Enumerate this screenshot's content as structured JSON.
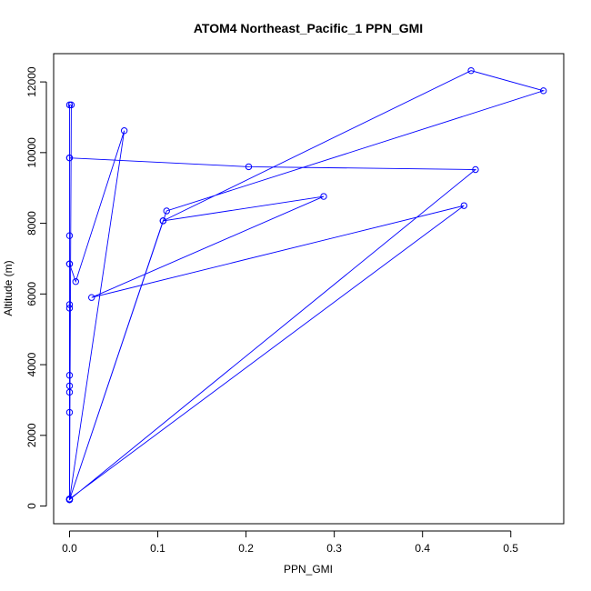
{
  "chart_data": {
    "type": "line",
    "title": "ATOM4 Northeast_Pacific_1 PPN_GMI",
    "xlabel": "PPN_GMI",
    "ylabel": "Altitude (m)",
    "xlim": [
      -0.018,
      0.56
    ],
    "ylim": [
      -500,
      12800
    ],
    "xticks": [
      {
        "value": 0.0,
        "label": "0.0"
      },
      {
        "value": 0.1,
        "label": "0.1"
      },
      {
        "value": 0.2,
        "label": "0.2"
      },
      {
        "value": 0.3,
        "label": "0.3"
      },
      {
        "value": 0.4,
        "label": "0.4"
      },
      {
        "value": 0.5,
        "label": "0.5"
      }
    ],
    "yticks": [
      {
        "value": 0,
        "label": "0"
      },
      {
        "value": 2000,
        "label": "2000"
      },
      {
        "value": 4000,
        "label": "4000"
      },
      {
        "value": 6000,
        "label": "6000"
      },
      {
        "value": 8000,
        "label": "8000"
      },
      {
        "value": 10000,
        "label": "10000"
      },
      {
        "value": 12000,
        "label": "12000"
      }
    ],
    "grid": false,
    "series": [
      {
        "color": "#0000ff",
        "marker": "open-circle",
        "points": [
          {
            "x": 0.0,
            "y": 180
          },
          {
            "x": 0.0,
            "y": 200
          },
          {
            "x": 0.0,
            "y": 2650
          },
          {
            "x": 0.0,
            "y": 3220
          },
          {
            "x": 0.0,
            "y": 3400
          },
          {
            "x": 0.0,
            "y": 3700
          },
          {
            "x": 0.0,
            "y": 5600
          },
          {
            "x": 0.0,
            "y": 5700
          },
          {
            "x": 0.0,
            "y": 6850
          },
          {
            "x": 0.0,
            "y": 7650
          },
          {
            "x": 0.0,
            "y": 9850
          },
          {
            "x": 0.0,
            "y": 11350
          },
          {
            "x": 0.002,
            "y": 11350
          },
          {
            "x": 0.0,
            "y": 180
          },
          {
            "x": 0.0,
            "y": 6850
          },
          {
            "x": 0.007,
            "y": 6350
          },
          {
            "x": 0.062,
            "y": 10620
          },
          {
            "x": 0.0,
            "y": 180
          },
          {
            "x": 0.106,
            "y": 8070
          },
          {
            "x": 0.288,
            "y": 8760
          },
          {
            "x": 0.025,
            "y": 5900
          },
          {
            "x": 0.447,
            "y": 8500
          },
          {
            "x": 0.0,
            "y": 200
          },
          {
            "x": 0.0,
            "y": 9850
          },
          {
            "x": 0.203,
            "y": 9600
          },
          {
            "x": 0.46,
            "y": 9520
          },
          {
            "x": 0.0,
            "y": 180
          },
          {
            "x": 0.11,
            "y": 8350
          },
          {
            "x": 0.537,
            "y": 11750
          },
          {
            "x": 0.455,
            "y": 12320
          },
          {
            "x": 0.106,
            "y": 8070
          }
        ]
      }
    ]
  }
}
